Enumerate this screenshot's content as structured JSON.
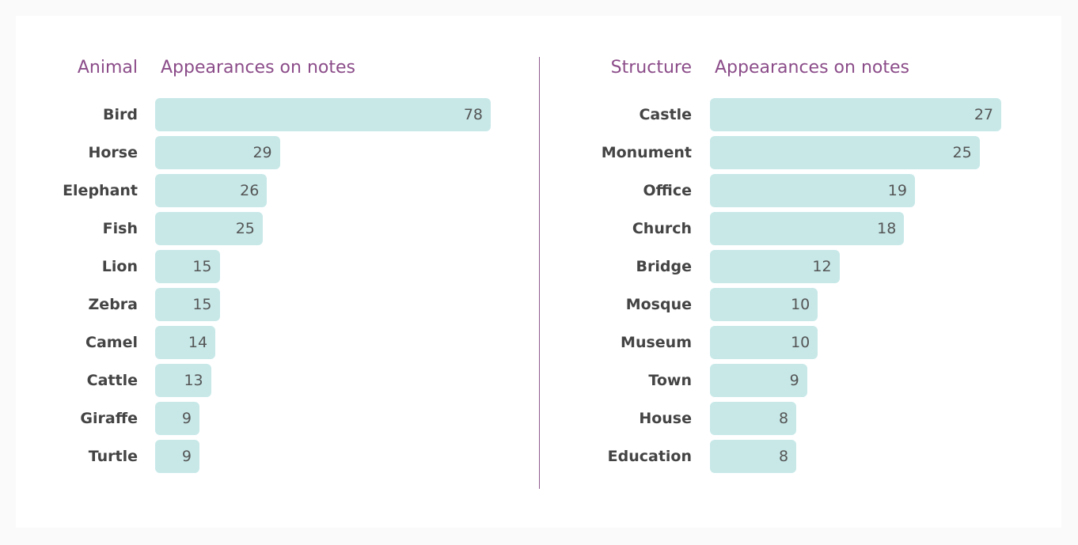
{
  "chart_data": [
    {
      "type": "bar",
      "orientation": "horizontal",
      "category_header": "Animal",
      "value_header": "Appearances on notes",
      "categories": [
        "Bird",
        "Horse",
        "Elephant",
        "Fish",
        "Lion",
        "Zebra",
        "Camel",
        "Cattle",
        "Giraffe",
        "Turtle"
      ],
      "values": [
        78,
        29,
        26,
        25,
        15,
        15,
        14,
        13,
        9,
        9
      ],
      "xlim": [
        0,
        78
      ],
      "grid": false,
      "bar_color": "#c8e8e8"
    },
    {
      "type": "bar",
      "orientation": "horizontal",
      "category_header": "Structure",
      "value_header": "Appearances on notes",
      "categories": [
        "Castle",
        "Monument",
        "Office",
        "Church",
        "Bridge",
        "Mosque",
        "Museum",
        "Town",
        "House",
        "Education"
      ],
      "values": [
        27,
        25,
        19,
        18,
        12,
        10,
        10,
        9,
        8,
        8
      ],
      "xlim": [
        0,
        27
      ],
      "grid": false,
      "bar_color": "#c8e8e8"
    }
  ],
  "colors": {
    "header": "#8b4c89",
    "divider": "#8e5a8e",
    "label": "#444444",
    "value": "#555555"
  }
}
